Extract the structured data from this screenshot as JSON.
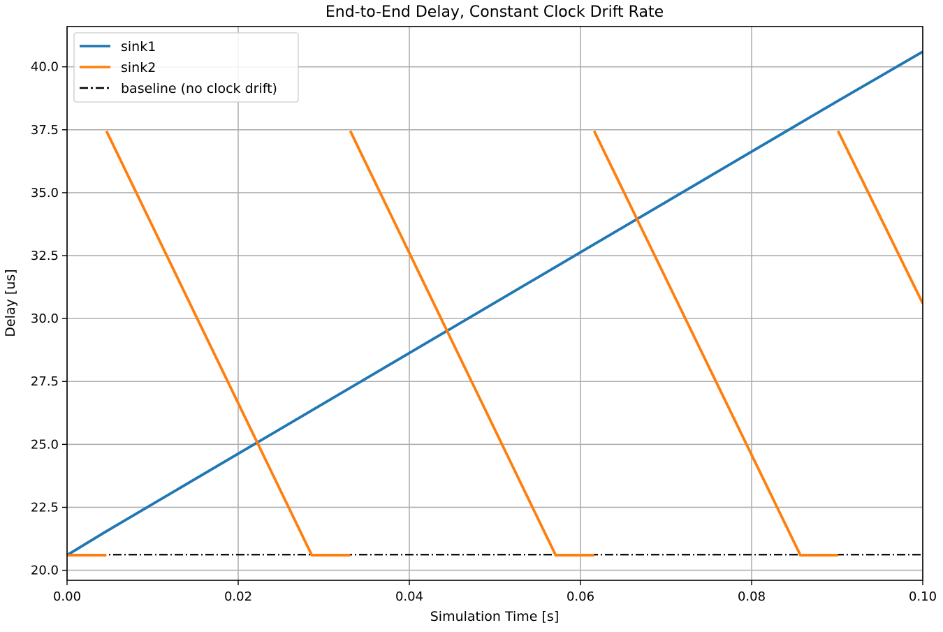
{
  "chart_data": {
    "type": "line",
    "title": "End-to-End Delay, Constant Clock Drift Rate",
    "xlabel": "Simulation Time [s]",
    "ylabel": "Delay [us]",
    "xlim": [
      0,
      0.1
    ],
    "ylim": [
      19.6,
      41.6
    ],
    "x_ticks": [
      0,
      0.02,
      0.04,
      0.06,
      0.08,
      0.1
    ],
    "x_tick_labels": [
      "0.00",
      "0.02",
      "0.04",
      "0.06",
      "0.08",
      "0.10"
    ],
    "y_ticks": [
      20,
      22.5,
      25,
      27.5,
      30,
      32.5,
      35,
      37.5,
      40
    ],
    "y_tick_labels": [
      "20.0",
      "22.5",
      "25.0",
      "27.5",
      "30.0",
      "32.5",
      "35.0",
      "37.5",
      "40.0"
    ],
    "grid": true,
    "legend_position": "top-left",
    "series": [
      {
        "name": "sink1",
        "color": "#1f77b4",
        "style": "solid",
        "x": [
          0.0,
          0.0046,
          0.0331,
          0.0616,
          0.0901,
          0.1
        ],
        "y": [
          20.6,
          21.55,
          27.25,
          32.95,
          38.65,
          40.6
        ]
      },
      {
        "name": "sink2",
        "color": "#ff7f0e",
        "style": "solid",
        "segments": [
          {
            "x": [
              0.0,
              0.0046
            ],
            "y": [
              20.6,
              20.6
            ]
          },
          {
            "x": [
              0.0046,
              0.0286,
              0.0331
            ],
            "y": [
              37.45,
              20.6,
              20.6
            ]
          },
          {
            "x": [
              0.0331,
              0.0571,
              0.0616
            ],
            "y": [
              37.45,
              20.6,
              20.6
            ]
          },
          {
            "x": [
              0.0616,
              0.0857,
              0.0901
            ],
            "y": [
              37.45,
              20.6,
              20.6
            ]
          },
          {
            "x": [
              0.0901,
              0.1
            ],
            "y": [
              37.45,
              30.6
            ]
          }
        ]
      },
      {
        "name": "baseline (no clock drift)",
        "color": "#000000",
        "style": "dashdot",
        "x": [
          0.0,
          0.1
        ],
        "y": [
          20.62,
          20.62
        ]
      }
    ]
  }
}
